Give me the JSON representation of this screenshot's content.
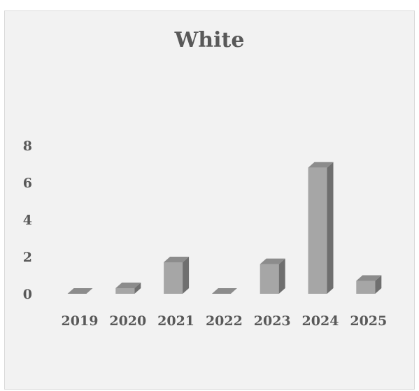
{
  "chart_data": {
    "type": "bar",
    "title": "White",
    "categories": [
      "2019",
      "2020",
      "2021",
      "2022",
      "2023",
      "2024",
      "2025"
    ],
    "values": [
      0,
      0.3,
      1.7,
      0,
      1.6,
      6.8,
      0.7
    ],
    "ylim": [
      0,
      8
    ],
    "yticks": [
      0,
      2,
      4,
      6,
      8
    ],
    "xlabel": "",
    "ylabel": "",
    "grid": false,
    "legend": "none",
    "style": "3d-column",
    "colors": {
      "front": "#a6a6a6",
      "side": "#6f6f6f",
      "top": "#8c8c8c",
      "text": "#595959",
      "background": "#f2f2f2"
    }
  }
}
